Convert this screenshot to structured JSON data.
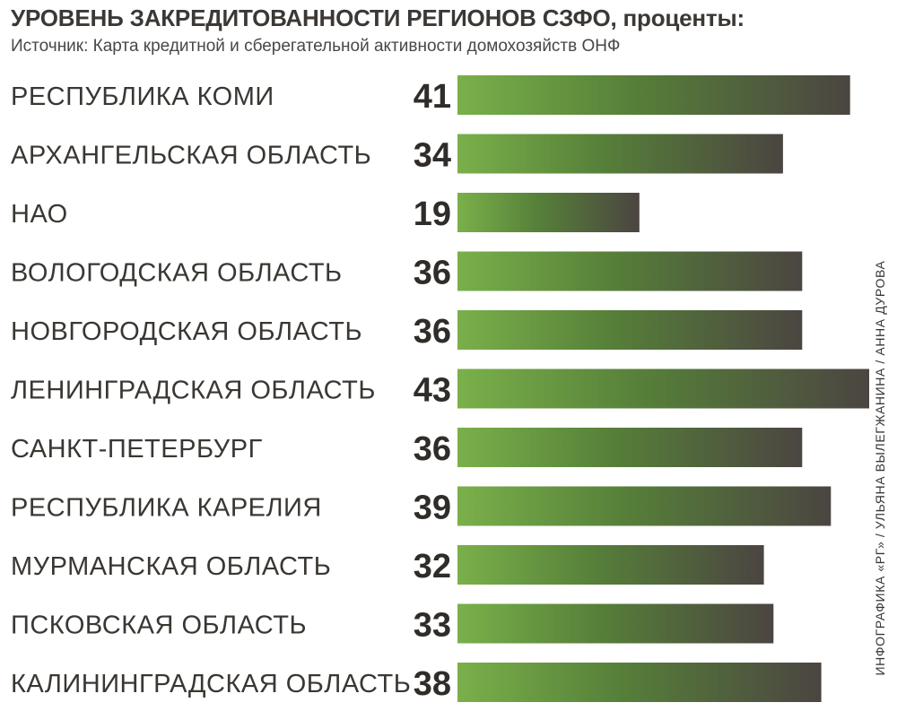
{
  "header": {
    "title": "УРОВЕНЬ ЗАКРЕДИТОВАННОСТИ РЕГИОНОВ СЗФО, проценты:",
    "subtitle": "Источник: Карта кредитной и сберегательной активности домохозяйств ОНФ"
  },
  "credit": "ИНФОГРАФИКА «РГ» / УЛЬЯНА ВЫЛЕГЖАНИНА / АННА ДУРОВА",
  "colors": {
    "bar_start": "#7ab04a",
    "bar_mid": "#567f39",
    "bar_end": "#4b4541",
    "text": "#3a3733"
  },
  "chart_data": {
    "type": "bar",
    "orientation": "horizontal",
    "title": "УРОВЕНЬ ЗАКРЕДИТОВАННОСТИ РЕГИОНОВ СЗФО, проценты:",
    "subtitle": "Источник: Карта кредитной и сберегательной активности домохозяйств ОНФ",
    "categories": [
      "РЕСПУБЛИКА КОМИ",
      "АРХАНГЕЛЬСКАЯ ОБЛАСТЬ",
      "НАО",
      "ВОЛОГОДСКАЯ ОБЛАСТЬ",
      "НОВГОРОДСКАЯ ОБЛАСТЬ",
      "ЛЕНИНГРАДСКАЯ ОБЛАСТЬ",
      "САНКТ-ПЕТЕРБУРГ",
      "РЕСПУБЛИКА КАРЕЛИЯ",
      "МУРМАНСКАЯ ОБЛАСТЬ",
      "ПСКОВСКАЯ ОБЛАСТЬ",
      "КАЛИНИНГРАДСКАЯ ОБЛАСТЬ"
    ],
    "values": [
      41,
      34,
      19,
      36,
      36,
      43,
      36,
      39,
      32,
      33,
      38
    ],
    "data_labels": [
      "41",
      "34",
      "19",
      "36",
      "36",
      "43",
      "36",
      "39",
      "32",
      "33",
      "38"
    ],
    "xlim": [
      0,
      43
    ],
    "grid": false,
    "legend": "none"
  }
}
